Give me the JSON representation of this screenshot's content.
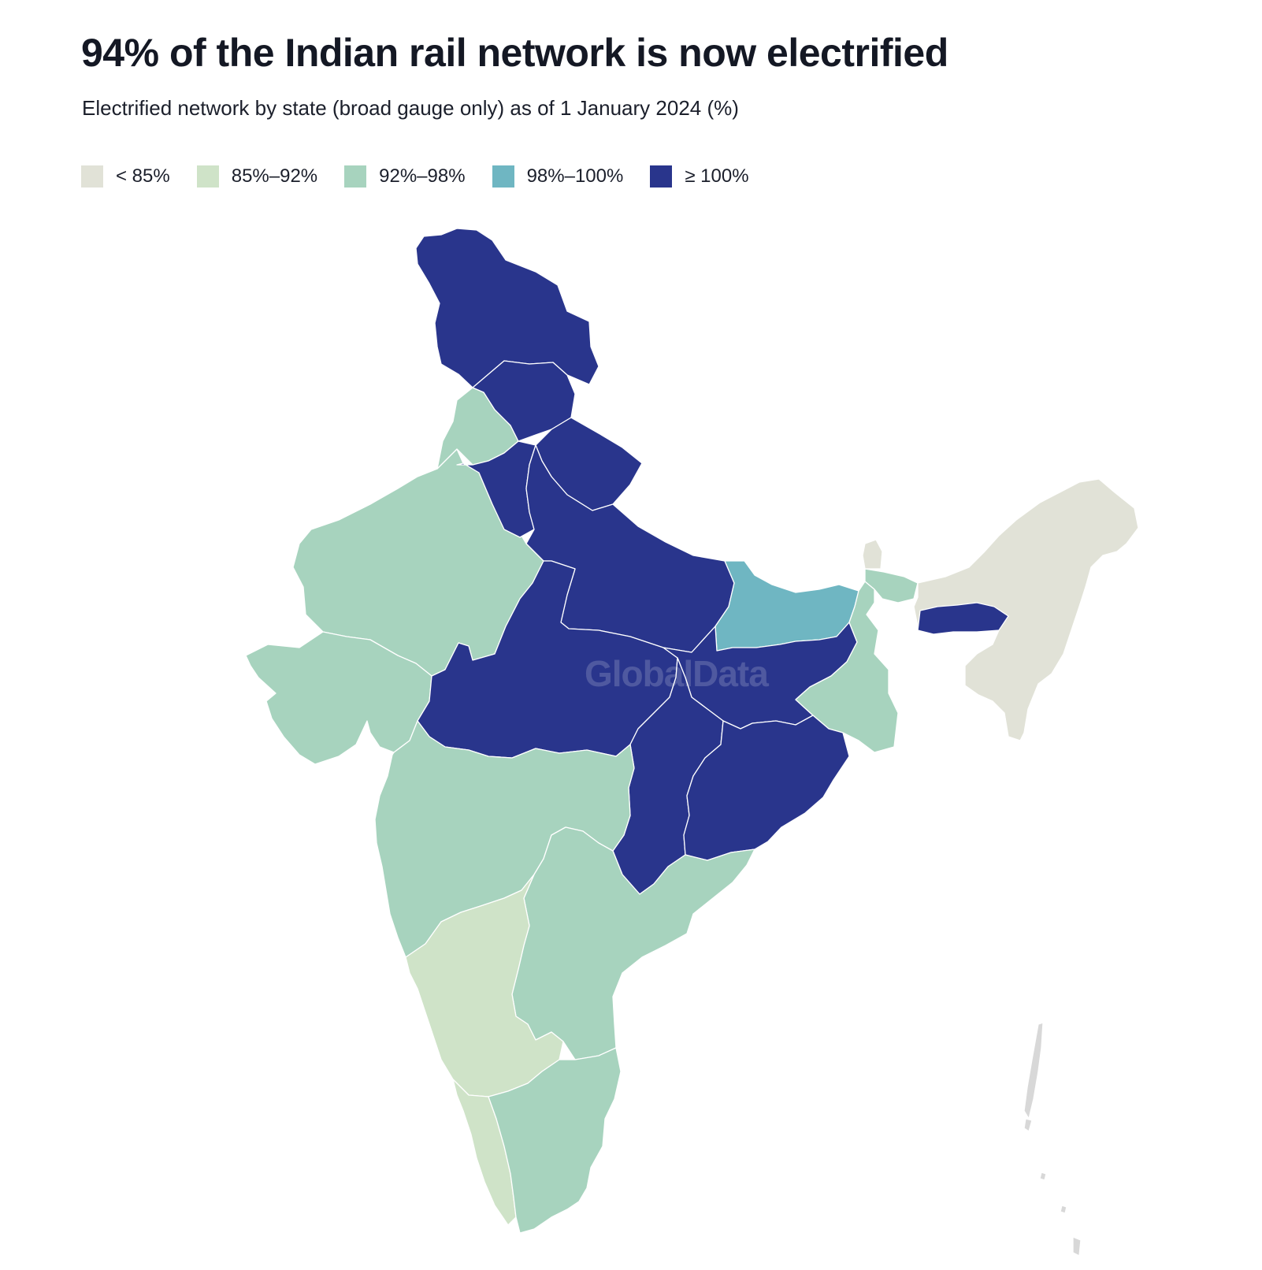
{
  "title": "94% of the Indian rail network is now electrified",
  "subtitle": "Electrified network by state (broad gauge only) as of 1 January 2024 (%)",
  "legend": [
    {
      "label": "< 85%",
      "color": "#e1e2d7"
    },
    {
      "label": "85%–92%",
      "color": "#cfe3c8"
    },
    {
      "label": "92%–98%",
      "color": "#a7d3be"
    },
    {
      "label": "98%–100%",
      "color": "#6fb6c2"
    },
    {
      "label": "≥ 100%",
      "color": "#29358c"
    }
  ],
  "watermark": "GlobalData",
  "colors": {
    "lt85": "#e1e2d7",
    "c85_92": "#cfe3c8",
    "c92_98": "#a7d3be",
    "c98_100": "#6fb6c2",
    "ge100": "#29358c",
    "islands": "#d8d8d8"
  },
  "regions": [
    {
      "name": "Jammu and Kashmir / Ladakh",
      "class": "≥ 100%"
    },
    {
      "name": "Himachal Pradesh",
      "class": "≥ 100%"
    },
    {
      "name": "Punjab",
      "class": "92%–98%"
    },
    {
      "name": "Uttarakhand",
      "class": "≥ 100%"
    },
    {
      "name": "Haryana",
      "class": "≥ 100%"
    },
    {
      "name": "Rajasthan",
      "class": "92%–98%"
    },
    {
      "name": "Uttar Pradesh",
      "class": "≥ 100%"
    },
    {
      "name": "Gujarat",
      "class": "92%–98%"
    },
    {
      "name": "Madhya Pradesh",
      "class": "≥ 100%"
    },
    {
      "name": "Bihar",
      "class": "98%–100%"
    },
    {
      "name": "Jharkhand",
      "class": "≥ 100%"
    },
    {
      "name": "West Bengal",
      "class": "92%–98%"
    },
    {
      "name": "Chhattisgarh",
      "class": "≥ 100%"
    },
    {
      "name": "Odisha",
      "class": "≥ 100%"
    },
    {
      "name": "Maharashtra",
      "class": "92%–98%"
    },
    {
      "name": "Telangana / Andhra Pradesh",
      "class": "92%–98%"
    },
    {
      "name": "Karnataka",
      "class": "85%–92%"
    },
    {
      "name": "Kerala",
      "class": "85%–92%"
    },
    {
      "name": "Tamil Nadu",
      "class": "92%–98%"
    },
    {
      "name": "Sikkim",
      "class": "< 85%"
    },
    {
      "name": "Meghalaya",
      "class": "≥ 100%"
    },
    {
      "name": "North-east states",
      "class": "< 85%"
    }
  ]
}
